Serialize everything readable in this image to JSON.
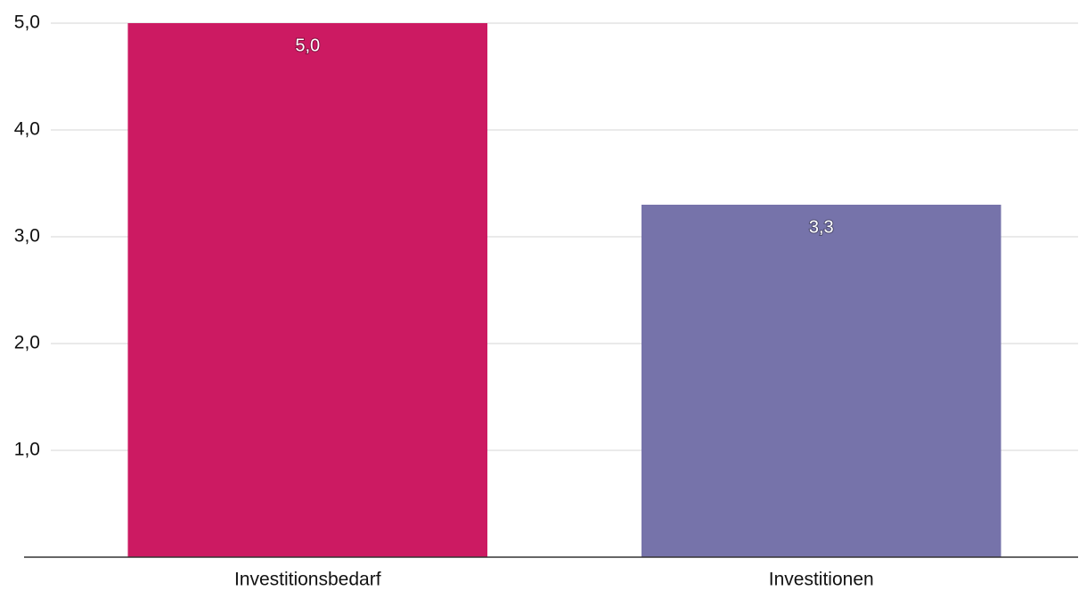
{
  "chart_data": {
    "type": "bar",
    "categories": [
      "Investitionsbedarf",
      "Investitionen"
    ],
    "values": [
      5.0,
      3.3
    ],
    "value_labels": [
      "5,0",
      "3,3"
    ],
    "colors": [
      "#cc1a62",
      "#7673aa"
    ],
    "ylim": [
      0,
      5
    ],
    "yticks": [
      {
        "value": 1,
        "label": "1,0"
      },
      {
        "value": 2,
        "label": "2,0"
      },
      {
        "value": 3,
        "label": "3,0"
      },
      {
        "value": 4,
        "label": "4,0"
      },
      {
        "value": 5,
        "label": "5,0"
      }
    ],
    "grid": true
  }
}
